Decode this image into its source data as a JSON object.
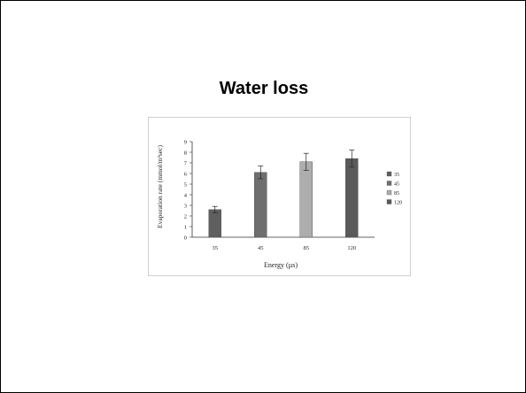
{
  "slide": {
    "title": "Water loss"
  },
  "chart_data": {
    "type": "bar",
    "categories": [
      "35",
      "45",
      "85",
      "120"
    ],
    "values": [
      2.6,
      6.1,
      7.1,
      7.4
    ],
    "errors": [
      0.3,
      0.6,
      0.8,
      0.8
    ],
    "colors": [
      "#5f5f5f",
      "#6e6e6e",
      "#adadad",
      "#5a5a5a"
    ],
    "xlabel": "Energy (µs)",
    "ylabel": "Evaporation rate (mmol/m²sec)",
    "ylim": [
      0,
      9
    ],
    "yticks": [
      "0",
      "1",
      "2",
      "3",
      "4",
      "5",
      "6",
      "7",
      "8",
      "9"
    ],
    "legend": [
      "35",
      "45",
      "85",
      "120"
    ],
    "legend_position": "right",
    "grid": false
  }
}
